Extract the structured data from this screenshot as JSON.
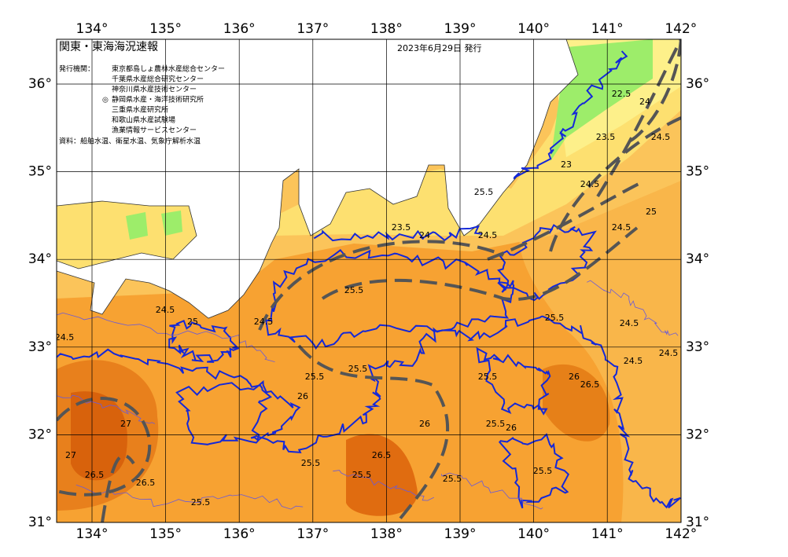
{
  "map": {
    "title": "関東・東海海況速報",
    "date": "2023年6月29日 発行",
    "issuer_heading": "発行機関：",
    "issuers": [
      "東京都島しょ農林水産総合センター",
      "千葉県水産総合研究センター",
      "神奈川県水産技術センター",
      "静岡県水産・海洋技術研究所",
      "三重県水産研究所",
      "和歌山県水産試験場",
      "漁業情報サービスセンター"
    ],
    "issuer_marker": "◎",
    "source": "資料：船舶水温、衛星水温、気象庁解析水温",
    "lon_ticks": [
      {
        "value": 134,
        "label": "134°"
      },
      {
        "value": 135,
        "label": "135°"
      },
      {
        "value": 136,
        "label": "136°"
      },
      {
        "value": 137,
        "label": "137°"
      },
      {
        "value": 138,
        "label": "138°"
      },
      {
        "value": 139,
        "label": "139°"
      },
      {
        "value": 140,
        "label": "140°"
      },
      {
        "value": 141,
        "label": "141°"
      },
      {
        "value": 142,
        "label": "142°"
      }
    ],
    "lat_ticks": [
      {
        "value": 31,
        "label": "31°"
      },
      {
        "value": 32,
        "label": "32°"
      },
      {
        "value": 33,
        "label": "33°"
      },
      {
        "value": 34,
        "label": "34°"
      },
      {
        "value": 35,
        "label": "35°"
      },
      {
        "value": 36,
        "label": "36°"
      }
    ],
    "contour_labels": [
      "22.5",
      "24",
      "23.5",
      "24.5",
      "23",
      "24.5",
      "25",
      "24.5",
      "23.5",
      "24",
      "24.5",
      "25.5",
      "24.5",
      "24.5",
      "24.5",
      "25",
      "24.5",
      "24.5",
      "24.5",
      "25.5",
      "25.5",
      "26",
      "26.5",
      "25.5",
      "26",
      "27",
      "26.5",
      "26.5",
      "27",
      "25.5",
      "25.5",
      "25.5",
      "26.5",
      "26",
      "25.5",
      "25.5",
      "25.5",
      "25.5",
      "26",
      "25.5"
    ]
  }
}
